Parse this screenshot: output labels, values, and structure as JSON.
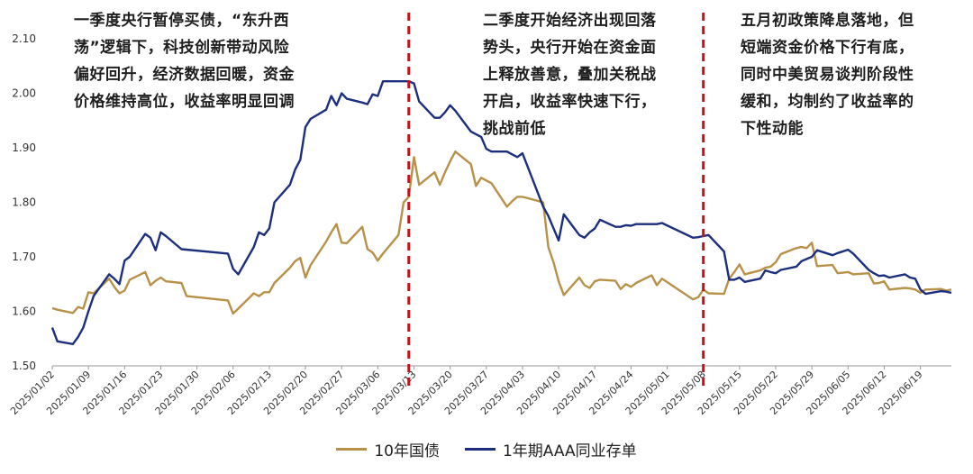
{
  "chart_data": {
    "type": "line",
    "ylim": [
      1.5,
      2.1
    ],
    "y_ticks": [
      "1.50",
      "1.60",
      "1.70",
      "1.80",
      "1.90",
      "2.00",
      "2.10"
    ],
    "x_tick_labels": [
      "2025/01/02",
      "2025/01/09",
      "2025/01/16",
      "2025/01/23",
      "2025/01/30",
      "2025/02/06",
      "2025/02/13",
      "2025/02/20",
      "2025/02/27",
      "2025/03/06",
      "2025/03/13",
      "2025/03/20",
      "2025/03/27",
      "2025/04/03",
      "2025/04/10",
      "2025/04/17",
      "2025/04/24",
      "2025/05/01",
      "2025/05/08",
      "2025/05/15",
      "2025/05/22",
      "2025/05/29",
      "2025/06/05",
      "2025/06/12",
      "2025/06/19"
    ],
    "x_range": [
      "2025-01-02",
      "2025-06-25"
    ],
    "grid": false,
    "legend_position": "bottom",
    "vlines": [
      "2025-03-12",
      "2025-05-08"
    ],
    "series": [
      {
        "name": "10年国债",
        "color": "#B89148",
        "points": [
          [
            "2025-01-02",
            1.606
          ],
          [
            "2025-01-03",
            1.603
          ],
          [
            "2025-01-06",
            1.597
          ],
          [
            "2025-01-07",
            1.608
          ],
          [
            "2025-01-08",
            1.605
          ],
          [
            "2025-01-09",
            1.635
          ],
          [
            "2025-01-10",
            1.633
          ],
          [
            "2025-01-13",
            1.66
          ],
          [
            "2025-01-14",
            1.645
          ],
          [
            "2025-01-15",
            1.633
          ],
          [
            "2025-01-16",
            1.638
          ],
          [
            "2025-01-17",
            1.658
          ],
          [
            "2025-01-20",
            1.672
          ],
          [
            "2025-01-21",
            1.648
          ],
          [
            "2025-01-22",
            1.656
          ],
          [
            "2025-01-23",
            1.662
          ],
          [
            "2025-01-24",
            1.655
          ],
          [
            "2025-01-27",
            1.652
          ],
          [
            "2025-01-28",
            1.628
          ],
          [
            "2025-02-05",
            1.62
          ],
          [
            "2025-02-06",
            1.596
          ],
          [
            "2025-02-07",
            1.605
          ],
          [
            "2025-02-10",
            1.633
          ],
          [
            "2025-02-11",
            1.628
          ],
          [
            "2025-02-12",
            1.635
          ],
          [
            "2025-02-13",
            1.635
          ],
          [
            "2025-02-14",
            1.652
          ],
          [
            "2025-02-17",
            1.68
          ],
          [
            "2025-02-18",
            1.692
          ],
          [
            "2025-02-19",
            1.698
          ],
          [
            "2025-02-20",
            1.662
          ],
          [
            "2025-02-21",
            1.685
          ],
          [
            "2025-02-24",
            1.728
          ],
          [
            "2025-02-25",
            1.745
          ],
          [
            "2025-02-26",
            1.76
          ],
          [
            "2025-02-27",
            1.726
          ],
          [
            "2025-02-28",
            1.725
          ],
          [
            "2025-03-03",
            1.755
          ],
          [
            "2025-03-04",
            1.714
          ],
          [
            "2025-03-05",
            1.708
          ],
          [
            "2025-03-06",
            1.693
          ],
          [
            "2025-03-07",
            1.706
          ],
          [
            "2025-03-10",
            1.74
          ],
          [
            "2025-03-11",
            1.8
          ],
          [
            "2025-03-12",
            1.81
          ],
          [
            "2025-03-13",
            1.883
          ],
          [
            "2025-03-14",
            1.832
          ],
          [
            "2025-03-17",
            1.855
          ],
          [
            "2025-03-18",
            1.832
          ],
          [
            "2025-03-19",
            1.855
          ],
          [
            "2025-03-20",
            1.875
          ],
          [
            "2025-03-21",
            1.893
          ],
          [
            "2025-03-24",
            1.87
          ],
          [
            "2025-03-25",
            1.83
          ],
          [
            "2025-03-26",
            1.845
          ],
          [
            "2025-03-27",
            1.84
          ],
          [
            "2025-03-28",
            1.835
          ],
          [
            "2025-03-31",
            1.792
          ],
          [
            "2025-04-01",
            1.802
          ],
          [
            "2025-04-02",
            1.81
          ],
          [
            "2025-04-03",
            1.81
          ],
          [
            "2025-04-07",
            1.8
          ],
          [
            "2025-04-08",
            1.718
          ],
          [
            "2025-04-09",
            1.69
          ],
          [
            "2025-04-10",
            1.655
          ],
          [
            "2025-04-11",
            1.63
          ],
          [
            "2025-04-14",
            1.662
          ],
          [
            "2025-04-15",
            1.648
          ],
          [
            "2025-04-16",
            1.643
          ],
          [
            "2025-04-17",
            1.655
          ],
          [
            "2025-04-18",
            1.658
          ],
          [
            "2025-04-21",
            1.656
          ],
          [
            "2025-04-22",
            1.641
          ],
          [
            "2025-04-23",
            1.65
          ],
          [
            "2025-04-24",
            1.645
          ],
          [
            "2025-04-25",
            1.652
          ],
          [
            "2025-04-28",
            1.666
          ],
          [
            "2025-04-29",
            1.648
          ],
          [
            "2025-04-30",
            1.66
          ],
          [
            "2025-05-06",
            1.622
          ],
          [
            "2025-05-07",
            1.626
          ],
          [
            "2025-05-08",
            1.64
          ],
          [
            "2025-05-09",
            1.633
          ],
          [
            "2025-05-12",
            1.632
          ],
          [
            "2025-05-13",
            1.66
          ],
          [
            "2025-05-14",
            1.672
          ],
          [
            "2025-05-15",
            1.686
          ],
          [
            "2025-05-16",
            1.668
          ],
          [
            "2025-05-19",
            1.675
          ],
          [
            "2025-05-20",
            1.68
          ],
          [
            "2025-05-21",
            1.682
          ],
          [
            "2025-05-22",
            1.69
          ],
          [
            "2025-05-23",
            1.705
          ],
          [
            "2025-05-26",
            1.716
          ],
          [
            "2025-05-27",
            1.718
          ],
          [
            "2025-05-28",
            1.716
          ],
          [
            "2025-05-29",
            1.726
          ],
          [
            "2025-05-30",
            1.683
          ],
          [
            "2025-06-02",
            1.685
          ],
          [
            "2025-06-03",
            1.67
          ],
          [
            "2025-06-05",
            1.672
          ],
          [
            "2025-06-06",
            1.668
          ],
          [
            "2025-06-09",
            1.67
          ],
          [
            "2025-06-10",
            1.651
          ],
          [
            "2025-06-11",
            1.652
          ],
          [
            "2025-06-12",
            1.655
          ],
          [
            "2025-06-13",
            1.64
          ],
          [
            "2025-06-16",
            1.643
          ],
          [
            "2025-06-17",
            1.642
          ],
          [
            "2025-06-18",
            1.64
          ],
          [
            "2025-06-19",
            1.634
          ],
          [
            "2025-06-20",
            1.64
          ],
          [
            "2025-06-23",
            1.641
          ],
          [
            "2025-06-24",
            1.638
          ],
          [
            "2025-06-25",
            1.64
          ]
        ]
      },
      {
        "name": "1年期AAA同业存单",
        "color": "#1C2E7E",
        "points": [
          [
            "2025-01-02",
            1.57
          ],
          [
            "2025-01-03",
            1.545
          ],
          [
            "2025-01-06",
            1.54
          ],
          [
            "2025-01-07",
            1.553
          ],
          [
            "2025-01-08",
            1.57
          ],
          [
            "2025-01-09",
            1.6
          ],
          [
            "2025-01-10",
            1.628
          ],
          [
            "2025-01-13",
            1.668
          ],
          [
            "2025-01-14",
            1.66
          ],
          [
            "2025-01-15",
            1.65
          ],
          [
            "2025-01-16",
            1.693
          ],
          [
            "2025-01-17",
            1.7
          ],
          [
            "2025-01-20",
            1.742
          ],
          [
            "2025-01-21",
            1.735
          ],
          [
            "2025-01-22",
            1.712
          ],
          [
            "2025-01-23",
            1.745
          ],
          [
            "2025-01-24",
            1.738
          ],
          [
            "2025-01-27",
            1.714
          ],
          [
            "2025-02-05",
            1.706
          ],
          [
            "2025-02-06",
            1.678
          ],
          [
            "2025-02-07",
            1.668
          ],
          [
            "2025-02-10",
            1.718
          ],
          [
            "2025-02-11",
            1.745
          ],
          [
            "2025-02-12",
            1.74
          ],
          [
            "2025-02-13",
            1.752
          ],
          [
            "2025-02-14",
            1.8
          ],
          [
            "2025-02-17",
            1.832
          ],
          [
            "2025-02-18",
            1.86
          ],
          [
            "2025-02-19",
            1.878
          ],
          [
            "2025-02-20",
            1.938
          ],
          [
            "2025-02-21",
            1.953
          ],
          [
            "2025-02-24",
            1.97
          ],
          [
            "2025-02-25",
            1.995
          ],
          [
            "2025-02-26",
            1.978
          ],
          [
            "2025-02-27",
            2.0
          ],
          [
            "2025-02-28",
            1.99
          ],
          [
            "2025-03-03",
            1.983
          ],
          [
            "2025-03-04",
            1.98
          ],
          [
            "2025-03-05",
            1.998
          ],
          [
            "2025-03-06",
            1.995
          ],
          [
            "2025-03-07",
            2.022
          ],
          [
            "2025-03-10",
            2.022
          ],
          [
            "2025-03-11",
            2.022
          ],
          [
            "2025-03-12",
            2.022
          ],
          [
            "2025-03-13",
            2.018
          ],
          [
            "2025-03-14",
            1.985
          ],
          [
            "2025-03-17",
            1.955
          ],
          [
            "2025-03-18",
            1.955
          ],
          [
            "2025-03-19",
            1.965
          ],
          [
            "2025-03-20",
            1.978
          ],
          [
            "2025-03-21",
            1.968
          ],
          [
            "2025-03-24",
            1.93
          ],
          [
            "2025-03-25",
            1.925
          ],
          [
            "2025-03-26",
            1.92
          ],
          [
            "2025-03-27",
            1.898
          ],
          [
            "2025-03-28",
            1.893
          ],
          [
            "2025-03-31",
            1.893
          ],
          [
            "2025-04-01",
            1.888
          ],
          [
            "2025-04-02",
            1.883
          ],
          [
            "2025-04-03",
            1.89
          ],
          [
            "2025-04-07",
            1.792
          ],
          [
            "2025-04-08",
            1.775
          ],
          [
            "2025-04-10",
            1.73
          ],
          [
            "2025-04-11",
            1.778
          ],
          [
            "2025-04-14",
            1.74
          ],
          [
            "2025-04-15",
            1.735
          ],
          [
            "2025-04-16",
            1.745
          ],
          [
            "2025-04-17",
            1.752
          ],
          [
            "2025-04-18",
            1.768
          ],
          [
            "2025-04-21",
            1.755
          ],
          [
            "2025-04-22",
            1.755
          ],
          [
            "2025-04-23",
            1.758
          ],
          [
            "2025-04-24",
            1.757
          ],
          [
            "2025-04-25",
            1.76
          ],
          [
            "2025-04-28",
            1.76
          ],
          [
            "2025-04-29",
            1.76
          ],
          [
            "2025-04-30",
            1.762
          ],
          [
            "2025-05-06",
            1.735
          ],
          [
            "2025-05-07",
            1.736
          ],
          [
            "2025-05-08",
            1.738
          ],
          [
            "2025-05-09",
            1.74
          ],
          [
            "2025-05-12",
            1.71
          ],
          [
            "2025-05-13",
            1.658
          ],
          [
            "2025-05-14",
            1.658
          ],
          [
            "2025-05-15",
            1.662
          ],
          [
            "2025-05-16",
            1.654
          ],
          [
            "2025-05-19",
            1.66
          ],
          [
            "2025-05-20",
            1.675
          ],
          [
            "2025-05-21",
            1.672
          ],
          [
            "2025-05-22",
            1.67
          ],
          [
            "2025-05-23",
            1.676
          ],
          [
            "2025-05-26",
            1.682
          ],
          [
            "2025-05-27",
            1.692
          ],
          [
            "2025-05-28",
            1.696
          ],
          [
            "2025-05-29",
            1.7
          ],
          [
            "2025-05-30",
            1.712
          ],
          [
            "2025-06-02",
            1.703
          ],
          [
            "2025-06-03",
            1.707
          ],
          [
            "2025-06-05",
            1.713
          ],
          [
            "2025-06-06",
            1.706
          ],
          [
            "2025-06-09",
            1.676
          ],
          [
            "2025-06-10",
            1.67
          ],
          [
            "2025-06-11",
            1.665
          ],
          [
            "2025-06-12",
            1.666
          ],
          [
            "2025-06-13",
            1.662
          ],
          [
            "2025-06-16",
            1.668
          ],
          [
            "2025-06-17",
            1.662
          ],
          [
            "2025-06-18",
            1.66
          ],
          [
            "2025-06-19",
            1.64
          ],
          [
            "2025-06-20",
            1.632
          ],
          [
            "2025-06-23",
            1.637
          ],
          [
            "2025-06-24",
            1.636
          ],
          [
            "2025-06-25",
            1.634
          ]
        ]
      }
    ],
    "annotations": [
      {
        "lines": [
          "一季度央行暂停买债，“东升西",
          "荡”逻辑下，科技创新带动风险",
          "偏好回升，经济数据回暖，资金",
          "价格维持高位，收益率明显回调"
        ]
      },
      {
        "lines": [
          "二季度开始经济出现回落",
          "势头，央行开始在资金面",
          "上释放善意，叠加关税战",
          "开启，收益率快速下行，",
          "挑战前低"
        ]
      },
      {
        "lines": [
          "五月初政策降息落地，但",
          "短端资金价格下行有底，",
          "同时中美贸易谈判阶段性",
          "缓和，均制约了收益率的",
          "下性动能"
        ]
      }
    ],
    "divider_color": "#C0141C"
  }
}
